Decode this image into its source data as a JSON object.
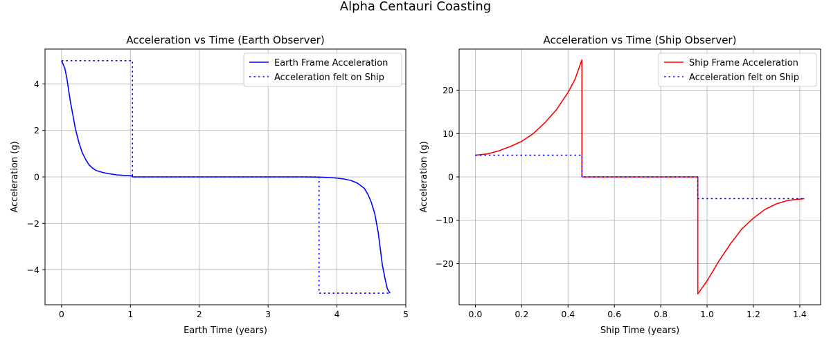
{
  "figure": {
    "title": "Alpha Centauri Coasting"
  },
  "chart_data": [
    {
      "type": "line",
      "title": "Acceleration vs Time (Earth Observer)",
      "xlabel": "Earth Time (years)",
      "ylabel": "Acceleration (g)",
      "xlim": [
        -0.24,
        5.0
      ],
      "ylim": [
        -5.5,
        5.5
      ],
      "xticks": [
        0,
        1,
        2,
        3,
        4,
        5
      ],
      "yticks": [
        -4,
        -2,
        0,
        2,
        4
      ],
      "grid": true,
      "legend_position": "upper right",
      "series": [
        {
          "name": "Earth Frame Acceleration",
          "color": "#0000ff",
          "style": "solid",
          "points": [
            [
              0.0,
              5.0
            ],
            [
              0.03,
              4.8
            ],
            [
              0.05,
              4.65
            ],
            [
              0.08,
              4.2
            ],
            [
              0.1,
              3.8
            ],
            [
              0.13,
              3.2
            ],
            [
              0.15,
              2.9
            ],
            [
              0.2,
              2.1
            ],
            [
              0.25,
              1.5
            ],
            [
              0.3,
              1.05
            ],
            [
              0.35,
              0.75
            ],
            [
              0.4,
              0.52
            ],
            [
              0.45,
              0.38
            ],
            [
              0.5,
              0.28
            ],
            [
              0.6,
              0.19
            ],
            [
              0.7,
              0.13
            ],
            [
              0.8,
              0.09
            ],
            [
              0.9,
              0.065
            ],
            [
              1.0,
              0.05
            ],
            [
              1.03,
              0.04
            ],
            [
              1.03,
              0.0
            ],
            [
              3.5,
              0.0
            ],
            [
              3.75,
              -0.01
            ],
            [
              3.9,
              -0.03
            ],
            [
              4.0,
              -0.05
            ],
            [
              4.1,
              -0.09
            ],
            [
              4.2,
              -0.15
            ],
            [
              4.3,
              -0.27
            ],
            [
              4.4,
              -0.5
            ],
            [
              4.45,
              -0.75
            ],
            [
              4.5,
              -1.1
            ],
            [
              4.55,
              -1.6
            ],
            [
              4.6,
              -2.4
            ],
            [
              4.63,
              -3.1
            ],
            [
              4.66,
              -3.8
            ],
            [
              4.7,
              -4.4
            ],
            [
              4.73,
              -4.8
            ],
            [
              4.77,
              -5.0
            ]
          ]
        },
        {
          "name": "Acceleration felt on Ship",
          "color": "#0000ff",
          "style": "dotted",
          "points": [
            [
              0.0,
              5.0
            ],
            [
              1.03,
              5.0
            ],
            [
              1.03,
              0.0
            ],
            [
              3.74,
              0.0
            ],
            [
              3.74,
              -5.0
            ],
            [
              4.77,
              -5.0
            ]
          ]
        }
      ]
    },
    {
      "type": "line",
      "title": "Acceleration vs Time (Ship Observer)",
      "xlabel": "Ship Time (years)",
      "ylabel": "Acceleration (g)",
      "xlim": [
        -0.07,
        1.49
      ],
      "ylim": [
        -29.5,
        29.5
      ],
      "xticks": [
        0.0,
        0.2,
        0.4,
        0.6,
        0.8,
        1.0,
        1.2,
        1.4
      ],
      "yticks": [
        -20,
        -10,
        0,
        10,
        20
      ],
      "grid": true,
      "legend_position": "upper right",
      "series": [
        {
          "name": "Ship Frame Acceleration",
          "color": "#ff0000",
          "style": "solid",
          "points": [
            [
              0.0,
              5.0
            ],
            [
              0.05,
              5.3
            ],
            [
              0.1,
              6.0
            ],
            [
              0.15,
              7.0
            ],
            [
              0.2,
              8.2
            ],
            [
              0.25,
              10.0
            ],
            [
              0.3,
              12.5
            ],
            [
              0.35,
              15.5
            ],
            [
              0.4,
              19.5
            ],
            [
              0.43,
              22.5
            ],
            [
              0.46,
              27.0
            ],
            [
              0.46,
              0.0
            ],
            [
              0.96,
              0.0
            ],
            [
              0.96,
              -27.0
            ],
            [
              1.0,
              -24.0
            ],
            [
              1.05,
              -19.5
            ],
            [
              1.1,
              -15.5
            ],
            [
              1.15,
              -12.0
            ],
            [
              1.2,
              -9.5
            ],
            [
              1.25,
              -7.5
            ],
            [
              1.3,
              -6.2
            ],
            [
              1.35,
              -5.4
            ],
            [
              1.42,
              -5.0
            ]
          ]
        },
        {
          "name": "Acceleration felt on Ship",
          "color": "#0000ff",
          "style": "dotted",
          "points": [
            [
              0.0,
              5.0
            ],
            [
              0.46,
              5.0
            ],
            [
              0.46,
              0.0
            ],
            [
              0.96,
              0.0
            ],
            [
              0.96,
              -5.0
            ],
            [
              1.42,
              -5.0
            ]
          ]
        }
      ]
    }
  ]
}
